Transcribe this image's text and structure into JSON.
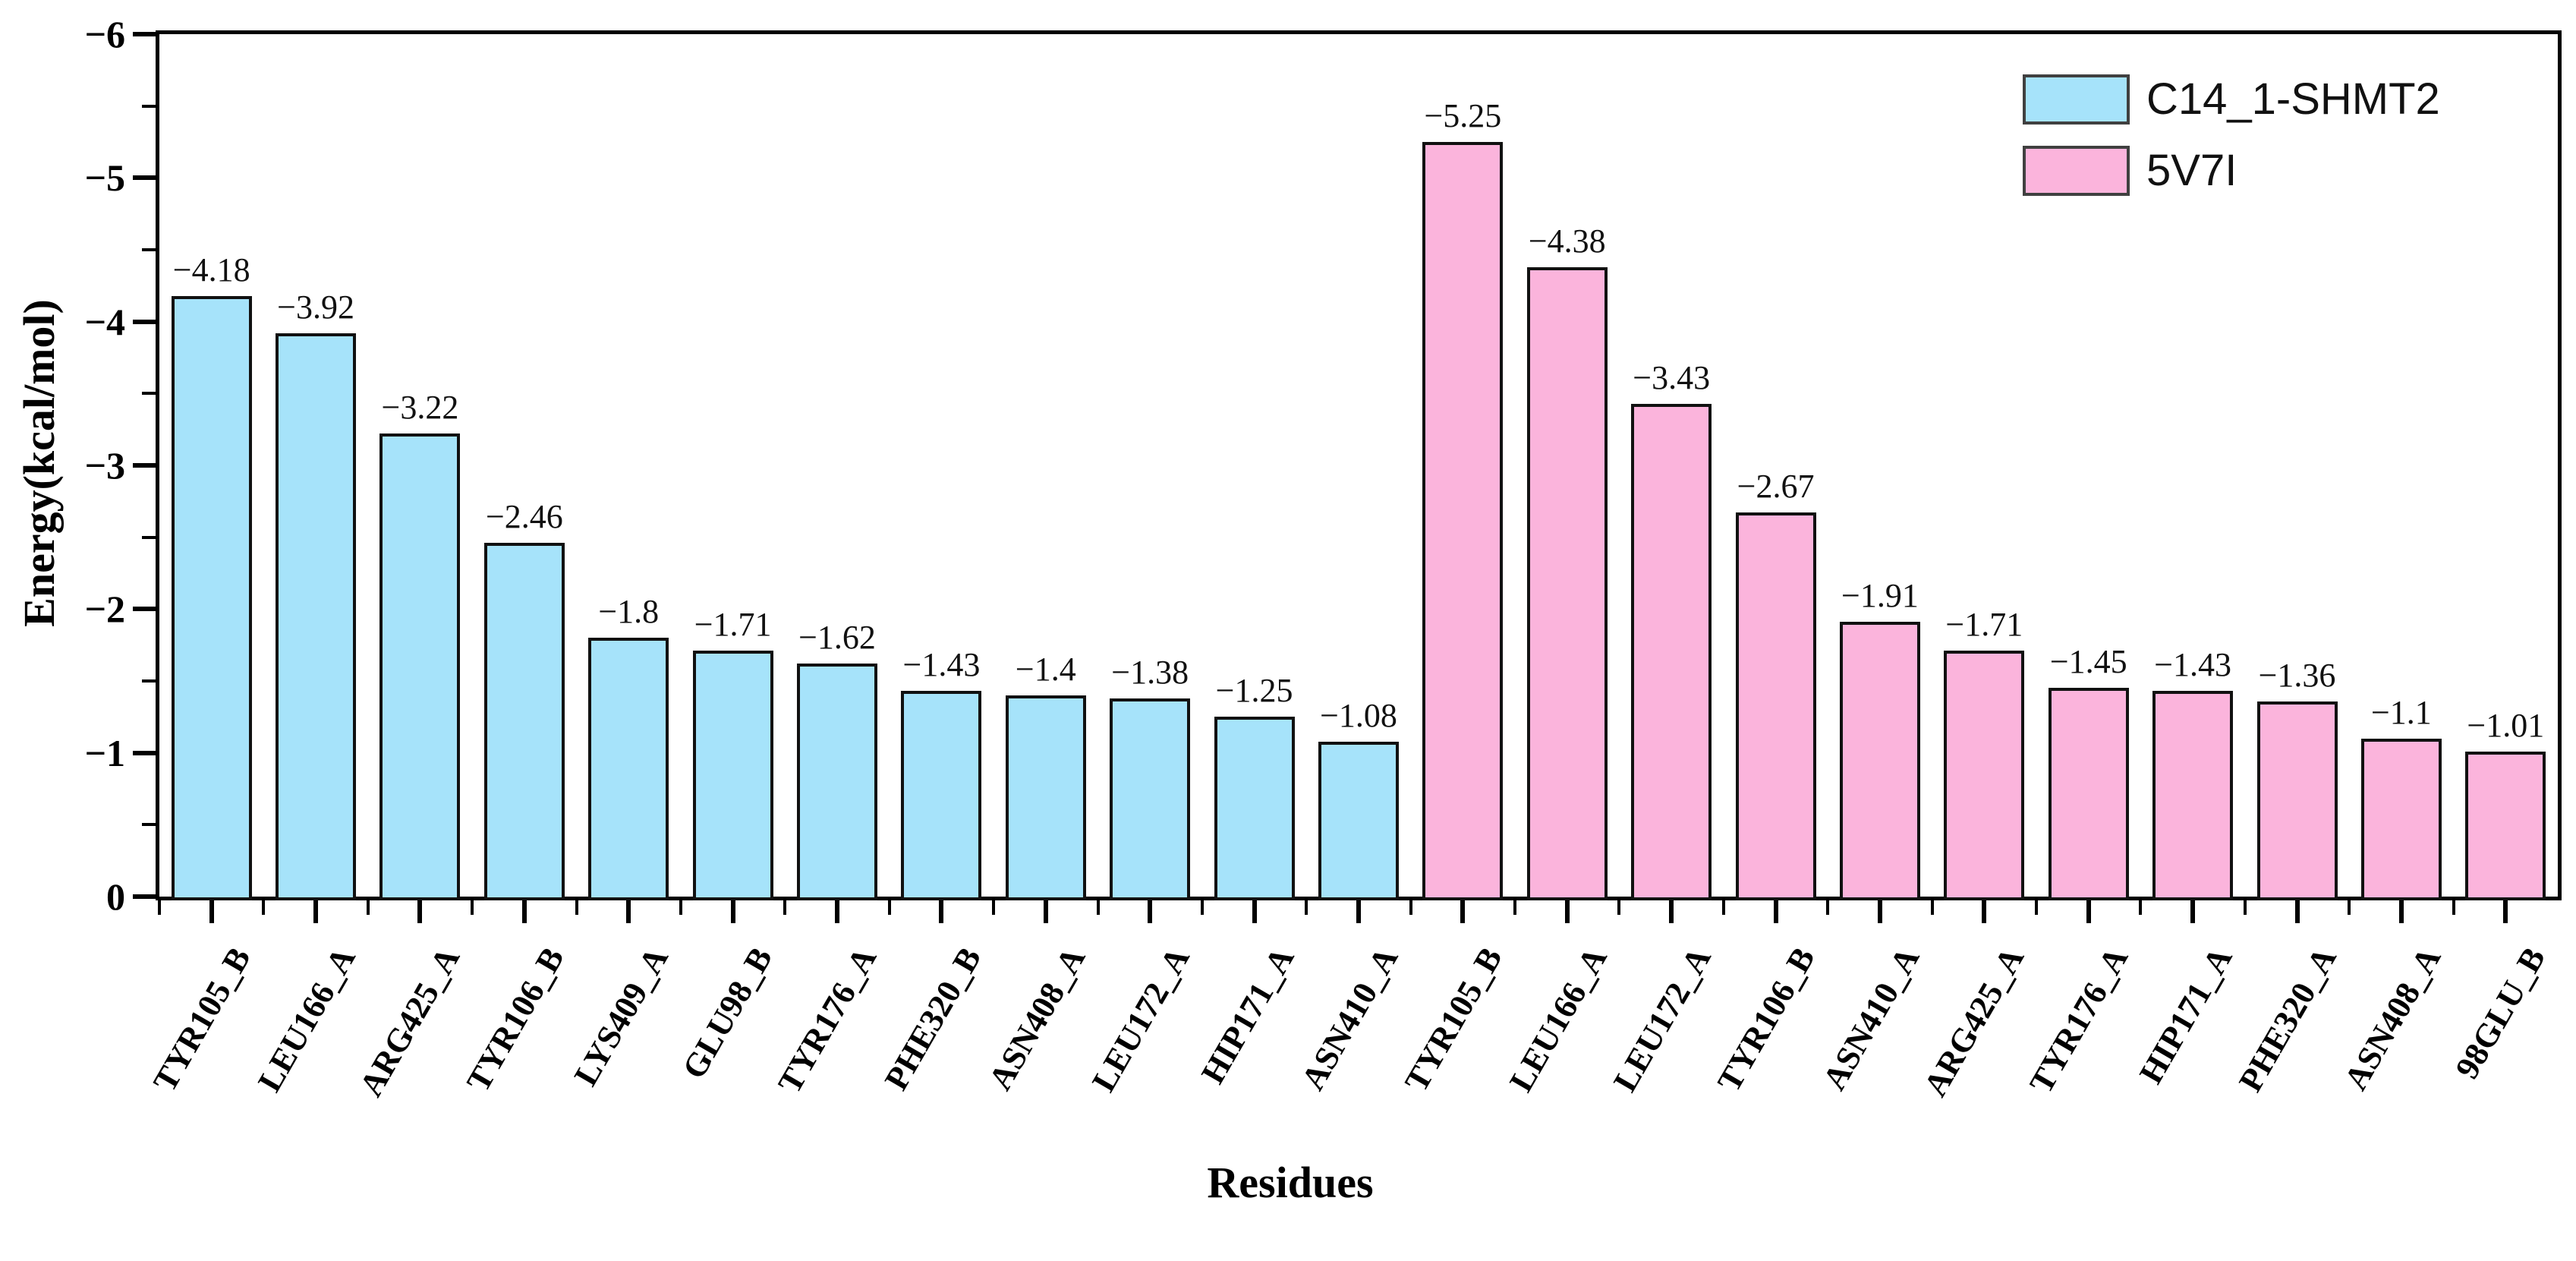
{
  "chart_data": {
    "type": "bar",
    "title": "",
    "xlabel": "Residues",
    "ylabel": "Energy(kcal/mol)",
    "ylim": [
      0,
      -6
    ],
    "y_ticks": [
      -6,
      -5,
      -4,
      -3,
      -2,
      -1,
      0
    ],
    "y_minor_ticks": [
      -5.5,
      -4.5,
      -3.5,
      -2.5,
      -1.5,
      -0.5
    ],
    "grid": false,
    "legend_position": "top-right",
    "series": [
      {
        "name": "C14_1-SHMT2",
        "color": "#a6e3fa"
      },
      {
        "name": "5V7I",
        "color": "#fbb4dc"
      }
    ],
    "bars": [
      {
        "residue": "TYR105_B",
        "value": -4.18,
        "label": "−4.18",
        "series": 0
      },
      {
        "residue": "LEU166_A",
        "value": -3.92,
        "label": "−3.92",
        "series": 0
      },
      {
        "residue": "ARG425_A",
        "value": -3.22,
        "label": "−3.22",
        "series": 0
      },
      {
        "residue": "TYR106_B",
        "value": -2.46,
        "label": "−2.46",
        "series": 0
      },
      {
        "residue": "LYS409_A",
        "value": -1.8,
        "label": "−1.8",
        "series": 0
      },
      {
        "residue": "GLU98_B",
        "value": -1.71,
        "label": "−1.71",
        "series": 0
      },
      {
        "residue": "TYR176_A",
        "value": -1.62,
        "label": "−1.62",
        "series": 0
      },
      {
        "residue": "PHE320_B",
        "value": -1.43,
        "label": "−1.43",
        "series": 0
      },
      {
        "residue": "ASN408_A",
        "value": -1.4,
        "label": "−1.4",
        "series": 0
      },
      {
        "residue": "LEU172_A",
        "value": -1.38,
        "label": "−1.38",
        "series": 0
      },
      {
        "residue": "HIP171_A",
        "value": -1.25,
        "label": "−1.25",
        "series": 0
      },
      {
        "residue": "ASN410_A",
        "value": -1.08,
        "label": "−1.08",
        "series": 0
      },
      {
        "residue": "TYR105_B",
        "value": -5.25,
        "label": "−5.25",
        "series": 1
      },
      {
        "residue": "LEU166_A",
        "value": -4.38,
        "label": "−4.38",
        "series": 1
      },
      {
        "residue": "LEU172_A",
        "value": -3.43,
        "label": "−3.43",
        "series": 1
      },
      {
        "residue": "TYR106_B",
        "value": -2.67,
        "label": "−2.67",
        "series": 1
      },
      {
        "residue": "ASN410_A",
        "value": -1.91,
        "label": "−1.91",
        "series": 1
      },
      {
        "residue": "ARG425_A",
        "value": -1.71,
        "label": "−1.71",
        "series": 1
      },
      {
        "residue": "TYR176_A",
        "value": -1.45,
        "label": "−1.45",
        "series": 1
      },
      {
        "residue": "HIP171_A",
        "value": -1.43,
        "label": "−1.43",
        "series": 1
      },
      {
        "residue": "PHE320_A",
        "value": -1.36,
        "label": "−1.36",
        "series": 1
      },
      {
        "residue": "ASN408_A",
        "value": -1.1,
        "label": "−1.1",
        "series": 1
      },
      {
        "residue": "98GLU_B",
        "value": -1.01,
        "label": "−1.01",
        "series": 1
      }
    ]
  }
}
